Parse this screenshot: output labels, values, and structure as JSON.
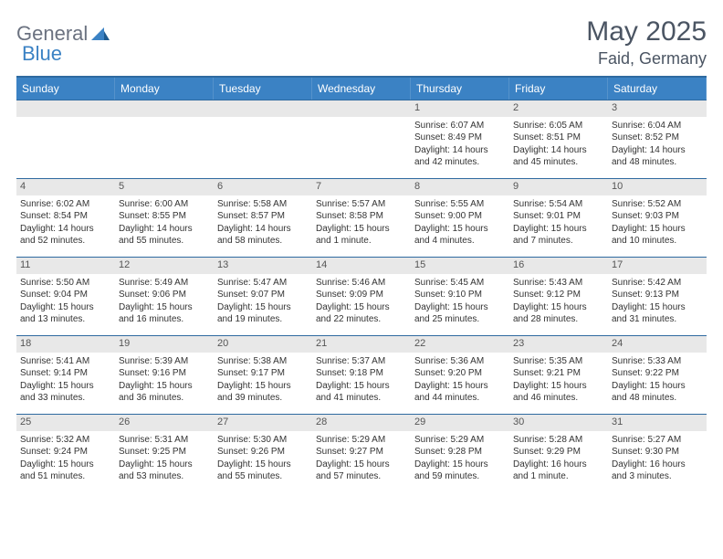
{
  "logo": {
    "text1": "General",
    "text2": "Blue"
  },
  "title": "May 2025",
  "location": "Faid, Germany",
  "colors": {
    "header_bg": "#3b82c4",
    "header_text": "#ffffff",
    "border": "#2f6aa0",
    "daynum_bg": "#e8e8e8",
    "body_text": "#333333",
    "title_text": "#4b5563"
  },
  "day_headers": [
    "Sunday",
    "Monday",
    "Tuesday",
    "Wednesday",
    "Thursday",
    "Friday",
    "Saturday"
  ],
  "weeks": [
    [
      {
        "n": "",
        "empty": true
      },
      {
        "n": "",
        "empty": true
      },
      {
        "n": "",
        "empty": true
      },
      {
        "n": "",
        "empty": true
      },
      {
        "n": "1",
        "sr": "Sunrise: 6:07 AM",
        "ss": "Sunset: 8:49 PM",
        "dl1": "Daylight: 14 hours",
        "dl2": "and 42 minutes."
      },
      {
        "n": "2",
        "sr": "Sunrise: 6:05 AM",
        "ss": "Sunset: 8:51 PM",
        "dl1": "Daylight: 14 hours",
        "dl2": "and 45 minutes."
      },
      {
        "n": "3",
        "sr": "Sunrise: 6:04 AM",
        "ss": "Sunset: 8:52 PM",
        "dl1": "Daylight: 14 hours",
        "dl2": "and 48 minutes."
      }
    ],
    [
      {
        "n": "4",
        "sr": "Sunrise: 6:02 AM",
        "ss": "Sunset: 8:54 PM",
        "dl1": "Daylight: 14 hours",
        "dl2": "and 52 minutes."
      },
      {
        "n": "5",
        "sr": "Sunrise: 6:00 AM",
        "ss": "Sunset: 8:55 PM",
        "dl1": "Daylight: 14 hours",
        "dl2": "and 55 minutes."
      },
      {
        "n": "6",
        "sr": "Sunrise: 5:58 AM",
        "ss": "Sunset: 8:57 PM",
        "dl1": "Daylight: 14 hours",
        "dl2": "and 58 minutes."
      },
      {
        "n": "7",
        "sr": "Sunrise: 5:57 AM",
        "ss": "Sunset: 8:58 PM",
        "dl1": "Daylight: 15 hours",
        "dl2": "and 1 minute."
      },
      {
        "n": "8",
        "sr": "Sunrise: 5:55 AM",
        "ss": "Sunset: 9:00 PM",
        "dl1": "Daylight: 15 hours",
        "dl2": "and 4 minutes."
      },
      {
        "n": "9",
        "sr": "Sunrise: 5:54 AM",
        "ss": "Sunset: 9:01 PM",
        "dl1": "Daylight: 15 hours",
        "dl2": "and 7 minutes."
      },
      {
        "n": "10",
        "sr": "Sunrise: 5:52 AM",
        "ss": "Sunset: 9:03 PM",
        "dl1": "Daylight: 15 hours",
        "dl2": "and 10 minutes."
      }
    ],
    [
      {
        "n": "11",
        "sr": "Sunrise: 5:50 AM",
        "ss": "Sunset: 9:04 PM",
        "dl1": "Daylight: 15 hours",
        "dl2": "and 13 minutes."
      },
      {
        "n": "12",
        "sr": "Sunrise: 5:49 AM",
        "ss": "Sunset: 9:06 PM",
        "dl1": "Daylight: 15 hours",
        "dl2": "and 16 minutes."
      },
      {
        "n": "13",
        "sr": "Sunrise: 5:47 AM",
        "ss": "Sunset: 9:07 PM",
        "dl1": "Daylight: 15 hours",
        "dl2": "and 19 minutes."
      },
      {
        "n": "14",
        "sr": "Sunrise: 5:46 AM",
        "ss": "Sunset: 9:09 PM",
        "dl1": "Daylight: 15 hours",
        "dl2": "and 22 minutes."
      },
      {
        "n": "15",
        "sr": "Sunrise: 5:45 AM",
        "ss": "Sunset: 9:10 PM",
        "dl1": "Daylight: 15 hours",
        "dl2": "and 25 minutes."
      },
      {
        "n": "16",
        "sr": "Sunrise: 5:43 AM",
        "ss": "Sunset: 9:12 PM",
        "dl1": "Daylight: 15 hours",
        "dl2": "and 28 minutes."
      },
      {
        "n": "17",
        "sr": "Sunrise: 5:42 AM",
        "ss": "Sunset: 9:13 PM",
        "dl1": "Daylight: 15 hours",
        "dl2": "and 31 minutes."
      }
    ],
    [
      {
        "n": "18",
        "sr": "Sunrise: 5:41 AM",
        "ss": "Sunset: 9:14 PM",
        "dl1": "Daylight: 15 hours",
        "dl2": "and 33 minutes."
      },
      {
        "n": "19",
        "sr": "Sunrise: 5:39 AM",
        "ss": "Sunset: 9:16 PM",
        "dl1": "Daylight: 15 hours",
        "dl2": "and 36 minutes."
      },
      {
        "n": "20",
        "sr": "Sunrise: 5:38 AM",
        "ss": "Sunset: 9:17 PM",
        "dl1": "Daylight: 15 hours",
        "dl2": "and 39 minutes."
      },
      {
        "n": "21",
        "sr": "Sunrise: 5:37 AM",
        "ss": "Sunset: 9:18 PM",
        "dl1": "Daylight: 15 hours",
        "dl2": "and 41 minutes."
      },
      {
        "n": "22",
        "sr": "Sunrise: 5:36 AM",
        "ss": "Sunset: 9:20 PM",
        "dl1": "Daylight: 15 hours",
        "dl2": "and 44 minutes."
      },
      {
        "n": "23",
        "sr": "Sunrise: 5:35 AM",
        "ss": "Sunset: 9:21 PM",
        "dl1": "Daylight: 15 hours",
        "dl2": "and 46 minutes."
      },
      {
        "n": "24",
        "sr": "Sunrise: 5:33 AM",
        "ss": "Sunset: 9:22 PM",
        "dl1": "Daylight: 15 hours",
        "dl2": "and 48 minutes."
      }
    ],
    [
      {
        "n": "25",
        "sr": "Sunrise: 5:32 AM",
        "ss": "Sunset: 9:24 PM",
        "dl1": "Daylight: 15 hours",
        "dl2": "and 51 minutes."
      },
      {
        "n": "26",
        "sr": "Sunrise: 5:31 AM",
        "ss": "Sunset: 9:25 PM",
        "dl1": "Daylight: 15 hours",
        "dl2": "and 53 minutes."
      },
      {
        "n": "27",
        "sr": "Sunrise: 5:30 AM",
        "ss": "Sunset: 9:26 PM",
        "dl1": "Daylight: 15 hours",
        "dl2": "and 55 minutes."
      },
      {
        "n": "28",
        "sr": "Sunrise: 5:29 AM",
        "ss": "Sunset: 9:27 PM",
        "dl1": "Daylight: 15 hours",
        "dl2": "and 57 minutes."
      },
      {
        "n": "29",
        "sr": "Sunrise: 5:29 AM",
        "ss": "Sunset: 9:28 PM",
        "dl1": "Daylight: 15 hours",
        "dl2": "and 59 minutes."
      },
      {
        "n": "30",
        "sr": "Sunrise: 5:28 AM",
        "ss": "Sunset: 9:29 PM",
        "dl1": "Daylight: 16 hours",
        "dl2": "and 1 minute."
      },
      {
        "n": "31",
        "sr": "Sunrise: 5:27 AM",
        "ss": "Sunset: 9:30 PM",
        "dl1": "Daylight: 16 hours",
        "dl2": "and 3 minutes."
      }
    ]
  ]
}
